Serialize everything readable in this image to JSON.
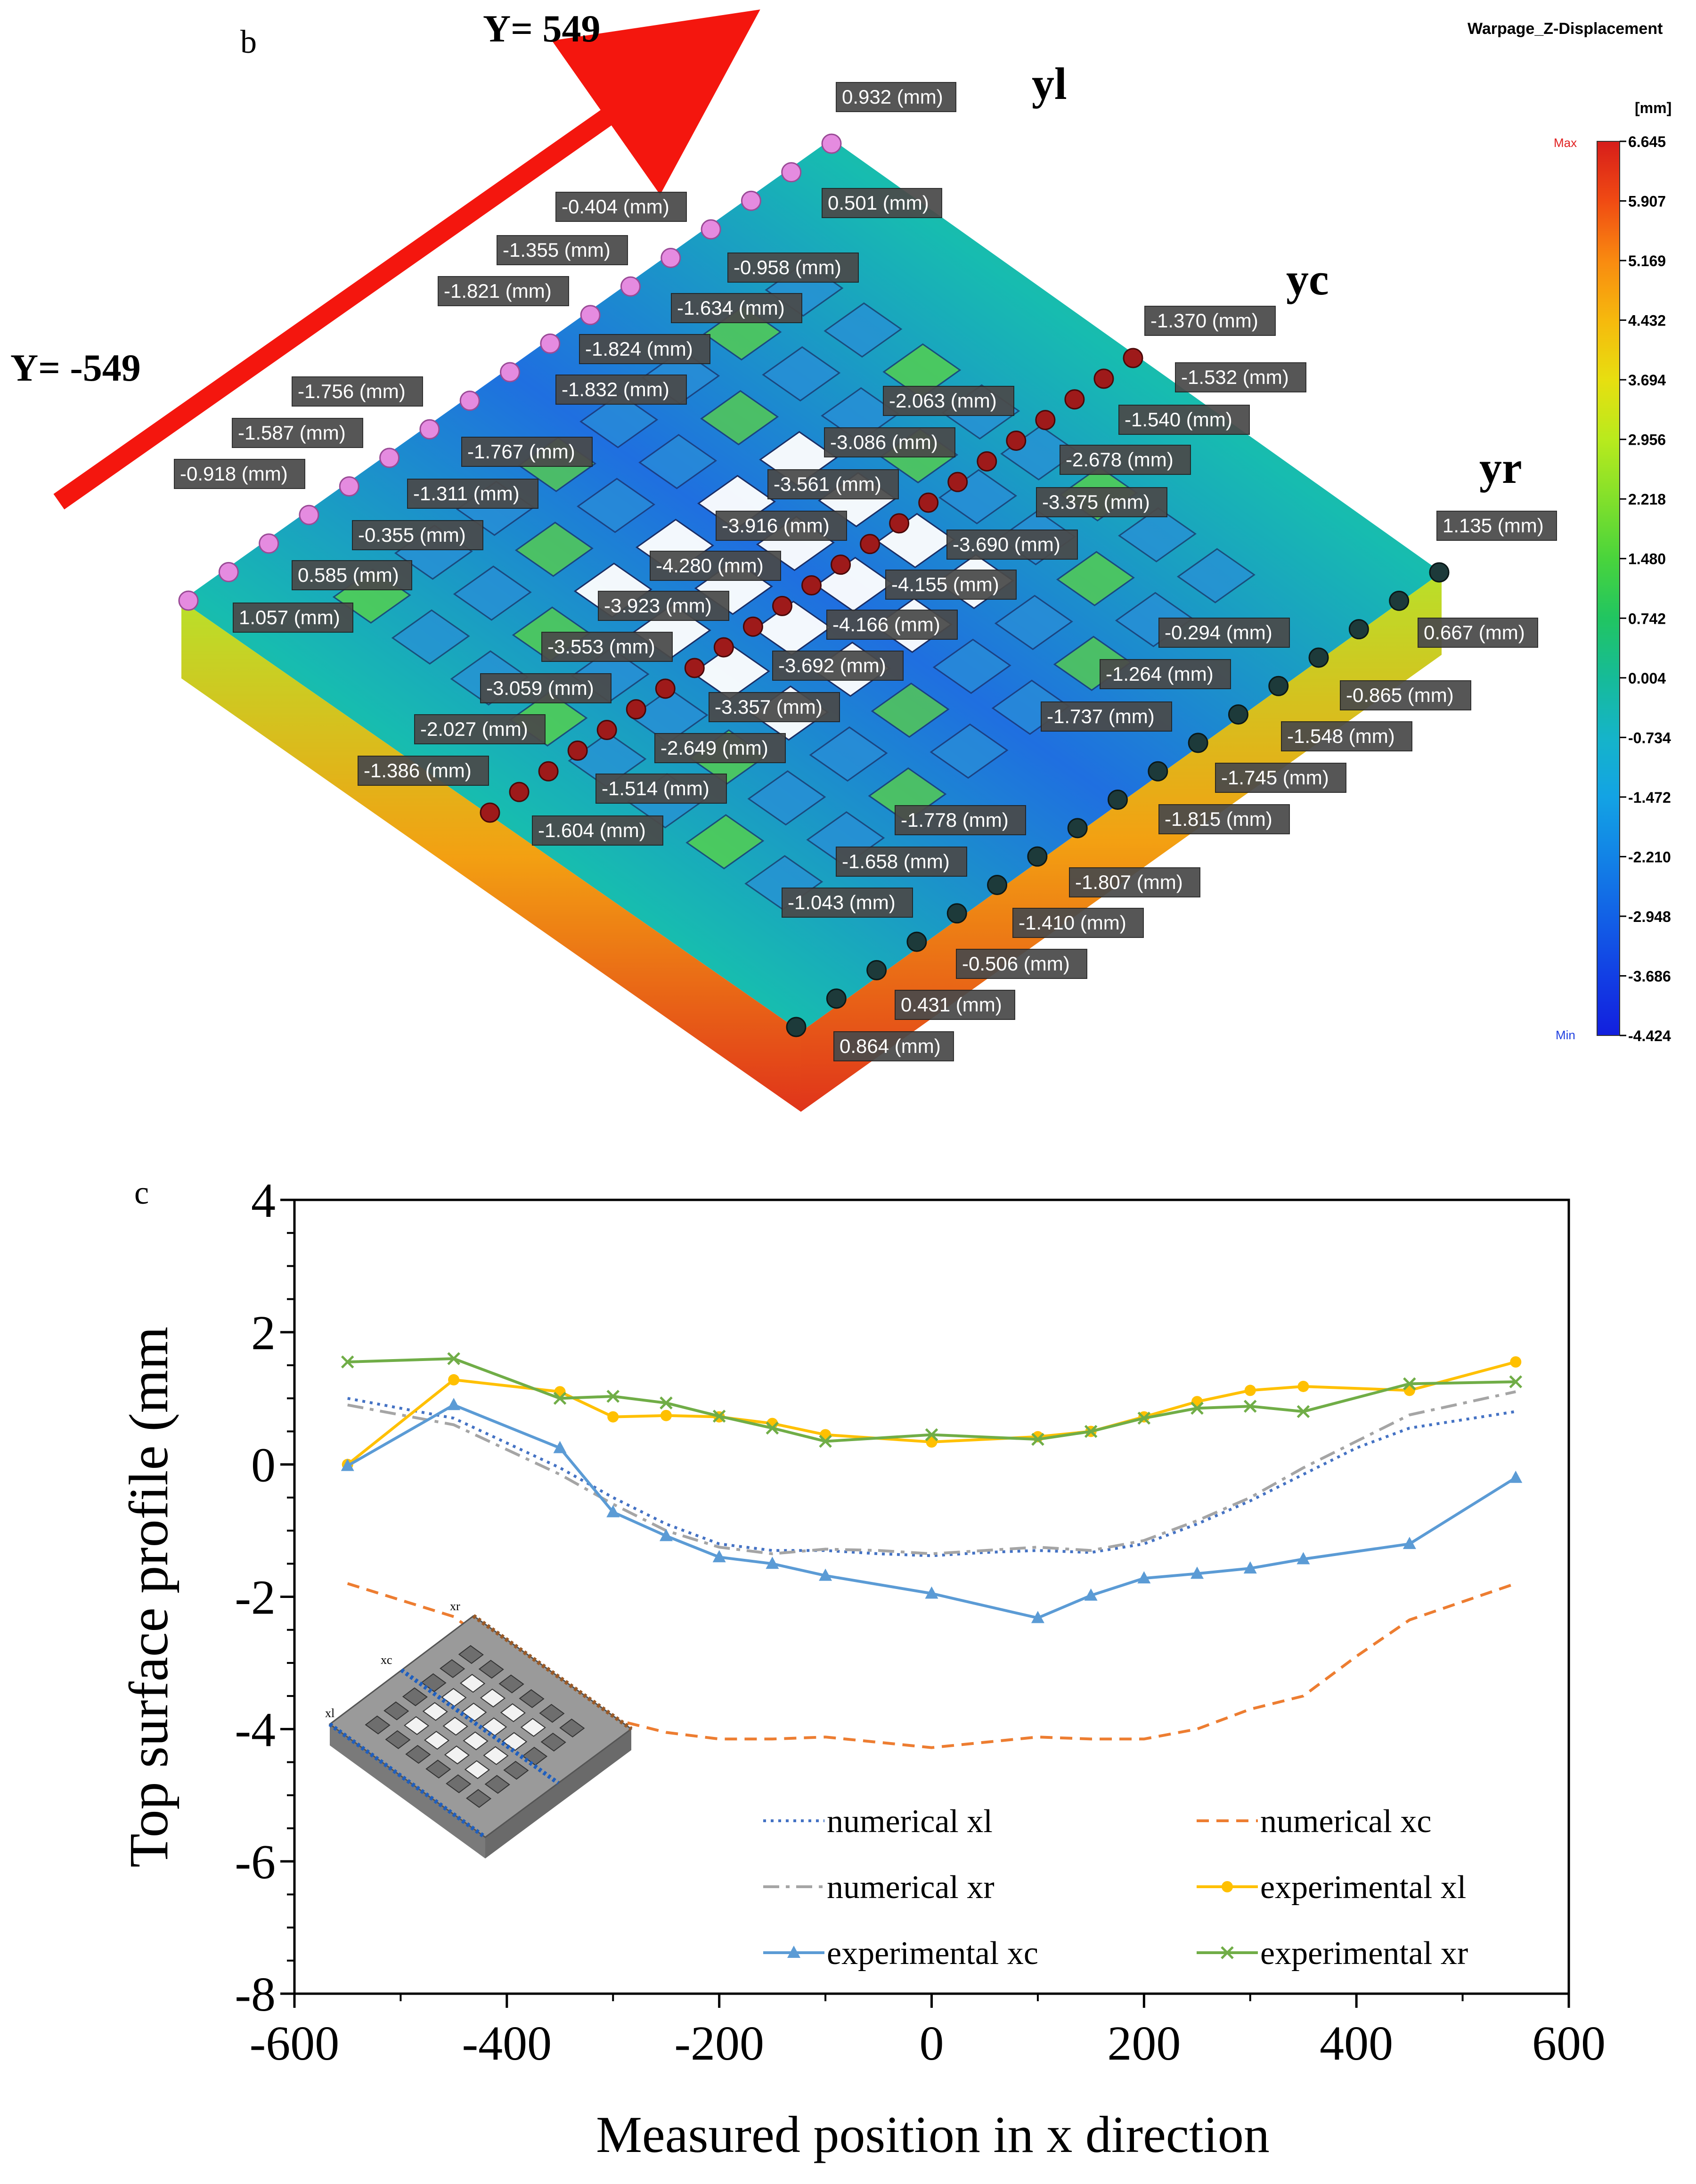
{
  "panel_b": {
    "panel_label": "b",
    "title": "Warpage_Z-Displacement",
    "unit": "[mm]",
    "direction_start_label": "Y= -549",
    "direction_end_label": "Y= 549",
    "line_labels": {
      "yl": "yl",
      "yc": "yc",
      "yr": "yr"
    },
    "colorbar": {
      "max_marker": "Max",
      "min_marker": "Min",
      "ticks": [
        "6.645",
        "5.907",
        "5.169",
        "4.432",
        "3.694",
        "2.956",
        "2.218",
        "1.480",
        "0.742",
        "0.004",
        "-0.734",
        "-1.472",
        "-2.210",
        "-2.948",
        "-3.686",
        "-4.424"
      ],
      "colors": [
        "#d71d1a",
        "#f04b13",
        "#f98a10",
        "#f6b90d",
        "#e7df10",
        "#b9ea1d",
        "#82e02b",
        "#49d43c",
        "#21c561",
        "#16bb98",
        "#15b4c9",
        "#13a3e4",
        "#1283e6",
        "#1261e6",
        "#123fe4",
        "#121fde"
      ]
    },
    "annotations_yl": [
      "0.932 (mm)",
      "0.501 (mm)",
      "-0.404 (mm)",
      "-0.958 (mm)",
      "-1.355 (mm)",
      "-1.634 (mm)",
      "-1.821 (mm)",
      "-1.824 (mm)",
      "-1.832 (mm)",
      "-1.756 (mm)",
      "-1.767 (mm)",
      "-1.587 (mm)",
      "-1.311 (mm)",
      "-0.918 (mm)",
      "-0.355 (mm)",
      "0.585 (mm)",
      "1.057 (mm)"
    ],
    "annotations_yc": [
      "-1.370 (mm)",
      "-1.532 (mm)",
      "-1.540 (mm)",
      "-2.063 (mm)",
      "-2.678 (mm)",
      "-3.086 (mm)",
      "-3.375 (mm)",
      "-3.561 (mm)",
      "-3.690 (mm)",
      "-3.916 (mm)",
      "-4.155 (mm)",
      "-4.280 (mm)",
      "-4.166 (mm)",
      "-3.923 (mm)",
      "-3.692 (mm)",
      "-3.553 (mm)",
      "-3.357 (mm)",
      "-3.059 (mm)",
      "-2.649 (mm)",
      "-2.027 (mm)",
      "-1.514 (mm)",
      "-1.386 (mm)",
      "-1.604 (mm)"
    ],
    "annotations_yr": [
      "1.135 (mm)",
      "0.667 (mm)",
      "-0.294 (mm)",
      "-0.865 (mm)",
      "-1.264 (mm)",
      "-1.548 (mm)",
      "-1.737 (mm)",
      "-1.745 (mm)",
      "-1.815 (mm)",
      "-1.778 (mm)",
      "-1.807 (mm)",
      "-1.658 (mm)",
      "-1.410 (mm)",
      "-1.043 (mm)",
      "-0.506 (mm)",
      "0.431 (mm)",
      "0.864 (mm)"
    ]
  },
  "chart_data": {
    "type": "line",
    "panel_label": "c",
    "xlabel": "Measured position in x direction",
    "ylabel": "Top surface profile (mm",
    "xlim": [
      -600,
      600
    ],
    "ylim": [
      -8,
      4
    ],
    "xticks": [
      -600,
      -400,
      -200,
      0,
      200,
      400,
      600
    ],
    "yticks": [
      -8,
      -6,
      -4,
      -2,
      0,
      2,
      4
    ],
    "grid": false,
    "legend_position": "bottom-right",
    "inset": {
      "labels": [
        "xl",
        "xc",
        "xr"
      ]
    },
    "series": [
      {
        "name": "numerical xl",
        "color": "#4472c4",
        "style": "dotted",
        "x": [
          -550,
          -450,
          -350,
          -300,
          -250,
          -200,
          -150,
          -100,
          -50,
          0,
          50,
          100,
          150,
          200,
          250,
          300,
          350,
          400,
          450,
          550
        ],
        "y": [
          1.0,
          0.7,
          -0.05,
          -0.5,
          -0.9,
          -1.2,
          -1.3,
          -1.3,
          -1.35,
          -1.38,
          -1.33,
          -1.3,
          -1.33,
          -1.2,
          -0.9,
          -0.55,
          -0.15,
          0.25,
          0.55,
          0.8
        ]
      },
      {
        "name": "numerical xc",
        "color": "#ed7d31",
        "style": "dashed",
        "x": [
          -550,
          -450,
          -350,
          -300,
          -250,
          -200,
          -150,
          -100,
          -50,
          0,
          50,
          100,
          150,
          200,
          250,
          300,
          350,
          400,
          450,
          550
        ],
        "y": [
          -1.8,
          -2.3,
          -3.5,
          -3.85,
          -4.05,
          -4.15,
          -4.15,
          -4.12,
          -4.2,
          -4.28,
          -4.2,
          -4.12,
          -4.15,
          -4.15,
          -4.0,
          -3.7,
          -3.5,
          -2.9,
          -2.35,
          -1.8
        ]
      },
      {
        "name": "numerical xr",
        "color": "#a5a5a5",
        "style": "dashdot",
        "x": [
          -550,
          -450,
          -350,
          -300,
          -250,
          -200,
          -150,
          -100,
          -50,
          0,
          50,
          100,
          150,
          200,
          250,
          300,
          350,
          400,
          450,
          550
        ],
        "y": [
          0.9,
          0.6,
          -0.15,
          -0.6,
          -1.0,
          -1.25,
          -1.35,
          -1.28,
          -1.3,
          -1.35,
          -1.3,
          -1.25,
          -1.3,
          -1.15,
          -0.85,
          -0.5,
          -0.05,
          0.35,
          0.75,
          1.1
        ]
      },
      {
        "name": "experimental xl",
        "color": "#ffc000",
        "marker": "circle",
        "x": [
          -550,
          -450,
          -350,
          -300,
          -250,
          -200,
          -150,
          -100,
          0,
          100,
          150,
          200,
          250,
          300,
          350,
          450,
          550
        ],
        "y": [
          0.0,
          1.28,
          1.1,
          0.72,
          0.74,
          0.72,
          0.62,
          0.45,
          0.34,
          0.42,
          0.5,
          0.72,
          0.95,
          1.12,
          1.18,
          1.12,
          1.55
        ]
      },
      {
        "name": "experimental xc",
        "color": "#5b9bd5",
        "marker": "triangle",
        "x": [
          -550,
          -450,
          -350,
          -300,
          -250,
          -200,
          -150,
          -100,
          0,
          100,
          150,
          200,
          250,
          300,
          350,
          450,
          550
        ],
        "y": [
          -0.02,
          0.9,
          0.25,
          -0.72,
          -1.08,
          -1.4,
          -1.5,
          -1.68,
          -1.95,
          -2.32,
          -1.98,
          -1.72,
          -1.65,
          -1.57,
          -1.43,
          -1.2,
          -0.2
        ]
      },
      {
        "name": "experimental xr",
        "color": "#70ad47",
        "marker": "x",
        "x": [
          -550,
          -450,
          -350,
          -300,
          -250,
          -200,
          -150,
          -100,
          0,
          100,
          150,
          200,
          250,
          300,
          350,
          450,
          550
        ],
        "y": [
          1.55,
          1.6,
          1.0,
          1.03,
          0.93,
          0.73,
          0.55,
          0.35,
          0.45,
          0.38,
          0.5,
          0.7,
          0.85,
          0.88,
          0.8,
          1.22,
          1.25
        ]
      }
    ]
  }
}
